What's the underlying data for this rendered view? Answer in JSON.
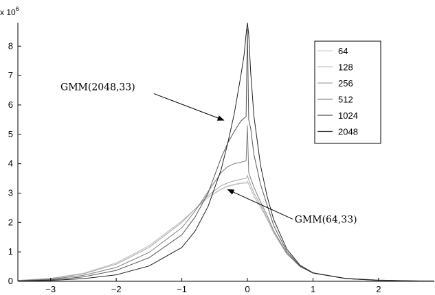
{
  "chart_data": {
    "type": "line",
    "title": "",
    "xlabel": "",
    "ylabel": "",
    "y_multiplier_label": "x 10",
    "y_multiplier_exponent": "6",
    "xlim": [
      -3.5,
      2.85
    ],
    "ylim": [
      0,
      8.8
    ],
    "xticks": [
      -3,
      -2,
      -1,
      0,
      1,
      2
    ],
    "yticks": [
      0,
      1,
      2,
      3,
      4,
      5,
      6,
      7,
      8
    ],
    "grid": false,
    "legend_position": "top-right",
    "x": [
      -3.5,
      -3.0,
      -2.5,
      -2.0,
      -1.5,
      -1.0,
      -0.8,
      -0.6,
      -0.4,
      -0.3,
      -0.2,
      -0.1,
      -0.05,
      -0.02,
      0,
      0.02,
      0.05,
      0.1,
      0.2,
      0.3,
      0.4,
      0.6,
      0.8,
      1.0,
      1.5,
      2.0,
      2.5,
      2.85
    ],
    "series": [
      {
        "name": "64",
        "color": "#d2d2d2",
        "values": [
          0.03,
          0.1,
          0.27,
          0.62,
          1.21,
          2.05,
          2.45,
          2.85,
          3.12,
          3.22,
          3.28,
          3.32,
          3.33,
          3.34,
          3.34,
          3.3,
          3.15,
          2.88,
          2.52,
          2.12,
          1.65,
          0.93,
          0.5,
          0.28,
          0.1,
          0.04,
          0.015,
          0.008
        ]
      },
      {
        "name": "128",
        "color": "#bcbcbc",
        "values": [
          0.03,
          0.1,
          0.27,
          0.62,
          1.21,
          2.05,
          2.45,
          2.86,
          3.14,
          3.24,
          3.3,
          3.34,
          3.35,
          3.36,
          3.4,
          3.32,
          3.16,
          2.89,
          2.53,
          2.13,
          1.65,
          0.93,
          0.5,
          0.28,
          0.1,
          0.04,
          0.015,
          0.008
        ]
      },
      {
        "name": "256",
        "color": "#a6a6a6",
        "values": [
          0.03,
          0.09,
          0.25,
          0.58,
          1.15,
          2.0,
          2.45,
          2.92,
          3.25,
          3.35,
          3.42,
          3.47,
          3.49,
          3.5,
          3.6,
          3.46,
          3.28,
          3.0,
          2.6,
          2.15,
          1.66,
          0.94,
          0.5,
          0.28,
          0.1,
          0.04,
          0.015,
          0.008
        ]
      },
      {
        "name": "512",
        "color": "#7c7c7c",
        "values": [
          0.02,
          0.07,
          0.2,
          0.47,
          0.98,
          1.82,
          2.38,
          3.05,
          3.7,
          3.9,
          4.0,
          4.05,
          4.08,
          4.1,
          5.3,
          3.7,
          3.5,
          3.2,
          2.7,
          2.25,
          1.72,
          0.96,
          0.51,
          0.28,
          0.1,
          0.04,
          0.015,
          0.008
        ]
      },
      {
        "name": "1024",
        "color": "#555555",
        "values": [
          0.01,
          0.05,
          0.15,
          0.37,
          0.8,
          1.58,
          2.18,
          3.0,
          4.2,
          4.7,
          5.1,
          5.45,
          5.55,
          5.6,
          8.6,
          5.5,
          5.2,
          4.3,
          3.3,
          2.6,
          1.9,
          1.02,
          0.52,
          0.28,
          0.09,
          0.035,
          0.013,
          0.007
        ]
      },
      {
        "name": "2048",
        "color": "#1e1e1e",
        "values": [
          0.01,
          0.03,
          0.09,
          0.22,
          0.52,
          1.15,
          1.7,
          2.55,
          3.8,
          4.7,
          5.7,
          7.0,
          7.7,
          8.4,
          8.8,
          8.4,
          7.1,
          5.6,
          3.95,
          2.9,
          2.1,
          1.1,
          0.55,
          0.29,
          0.09,
          0.03,
          0.012,
          0.006
        ]
      }
    ],
    "annotations": [
      {
        "text": "GMM(2048,33)",
        "x_text": -2.85,
        "y_text": 6.5,
        "x_arrow": -0.36,
        "y_arrow": 5.48
      },
      {
        "text": "GMM(64,33)",
        "x_text": 0.72,
        "y_text": 2.0,
        "x_arrow": -0.3,
        "y_arrow": 3.12
      }
    ]
  }
}
